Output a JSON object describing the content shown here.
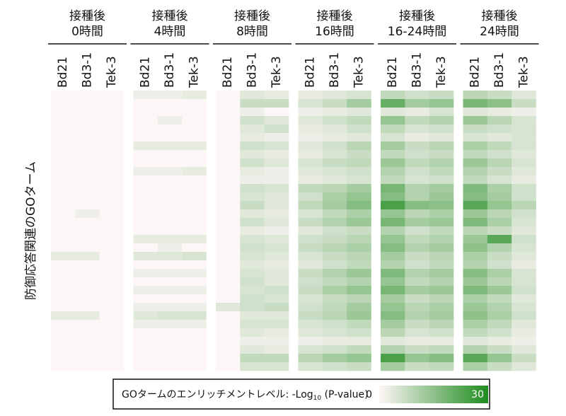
{
  "chart_data": {
    "type": "heatmap",
    "ylabel": "防御応答関連のGOターム",
    "colorbar_label": "GOタームのエンリッチメントレベル: -Log",
    "colorbar_label_sub": "10",
    "colorbar_label_end": " (P-value)",
    "zlim": [
      0,
      30
    ],
    "zticks": [
      0,
      30
    ],
    "colors": [
      "#fdf6f6",
      "#1e8c1e"
    ],
    "groups": [
      {
        "label": [
          "接種後",
          "0時間"
        ],
        "columns": [
          {
            "name": "Bd21",
            "values": [
              0,
              0,
              0,
              0,
              0,
              0,
              0,
              0,
              0,
              0,
              0,
              0,
              0,
              0,
              0,
              0,
              0,
              0,
              0,
              3,
              0,
              0,
              0,
              0,
              0,
              0,
              3,
              0,
              0,
              0,
              0,
              0,
              0
            ]
          },
          {
            "name": "Bd3-1",
            "values": [
              0,
              0,
              0,
              0,
              0,
              0,
              0,
              0,
              0,
              0,
              0,
              0,
              0,
              0,
              2,
              0,
              0,
              0,
              0,
              3,
              0,
              0,
              0,
              0,
              0,
              0,
              3,
              0,
              0,
              0,
              0,
              0,
              0
            ]
          },
          {
            "name": "Tek-3",
            "values": [
              0,
              0,
              0,
              0,
              0,
              0,
              0,
              0,
              0,
              0,
              0,
              0,
              0,
              0,
              0,
              0,
              0,
              0,
              0,
              0,
              0,
              0,
              0,
              0,
              0,
              0,
              0,
              0,
              0,
              0,
              0,
              0,
              0
            ]
          }
        ]
      },
      {
        "label": [
          "接種後",
          "4時間"
        ],
        "columns": [
          {
            "name": "Bd21",
            "values": [
              2,
              0,
              0,
              0,
              0,
              0,
              3,
              0,
              0,
              2,
              0,
              0,
              0,
              0,
              0,
              0,
              0,
              3,
              0,
              4,
              0,
              2,
              0,
              2,
              0,
              2,
              4,
              2,
              0,
              0,
              0,
              0,
              0
            ]
          },
          {
            "name": "Bd3-1",
            "values": [
              2,
              0,
              0,
              2,
              0,
              0,
              3,
              0,
              0,
              2,
              0,
              0,
              0,
              0,
              0,
              0,
              0,
              3,
              2,
              4,
              0,
              2,
              0,
              2,
              0,
              2,
              5,
              2,
              0,
              0,
              0,
              0,
              0
            ]
          },
          {
            "name": "Tek-3",
            "values": [
              3,
              0,
              0,
              0,
              0,
              0,
              3,
              0,
              0,
              3,
              0,
              0,
              0,
              0,
              0,
              0,
              0,
              3,
              0,
              5,
              0,
              2,
              0,
              2,
              0,
              2,
              5,
              2,
              0,
              0,
              0,
              0,
              0
            ]
          }
        ]
      },
      {
        "label": [
          "接種後",
          "8時間"
        ],
        "columns": [
          {
            "name": "Bd21",
            "values": [
              0,
              0,
              0,
              0,
              0,
              0,
              0,
              0,
              0,
              0,
              0,
              0,
              0,
              0,
              0,
              0,
              0,
              0,
              0,
              0,
              0,
              0,
              0,
              0,
              0,
              4,
              0,
              0,
              0,
              0,
              0,
              0,
              0
            ]
          },
          {
            "name": "Bd3-1",
            "values": [
              4,
              7,
              2,
              6,
              4,
              3,
              6,
              4,
              6,
              3,
              2,
              6,
              5,
              7,
              4,
              6,
              3,
              5,
              6,
              5,
              4,
              5,
              6,
              5,
              6,
              6,
              4,
              5,
              4,
              2,
              4,
              8,
              5
            ]
          },
          {
            "name": "Tek-3",
            "values": [
              3,
              7,
              0,
              4,
              6,
              2,
              5,
              3,
              4,
              2,
              2,
              5,
              4,
              4,
              3,
              4,
              2,
              4,
              5,
              4,
              3,
              4,
              4,
              6,
              5,
              7,
              4,
              5,
              3,
              2,
              3,
              8,
              5
            ]
          }
        ]
      },
      {
        "label": [
          "接種後",
          "16時間"
        ],
        "columns": [
          {
            "name": "Bd21",
            "values": [
              3,
              5,
              2,
              4,
              3,
              2,
              4,
              3,
              5,
              4,
              3,
              8,
              6,
              8,
              5,
              7,
              4,
              6,
              7,
              5,
              4,
              7,
              6,
              7,
              5,
              6,
              7,
              5,
              4,
              2,
              5,
              9,
              5
            ]
          },
          {
            "name": "Bd3-1",
            "values": [
              4,
              7,
              3,
              6,
              4,
              3,
              6,
              5,
              7,
              5,
              4,
              9,
              11,
              12,
              8,
              10,
              6,
              7,
              9,
              7,
              6,
              10,
              8,
              11,
              7,
              8,
              9,
              6,
              5,
              3,
              6,
              12,
              6
            ]
          },
          {
            "name": "Tek-3",
            "values": [
              5,
              12,
              4,
              8,
              6,
              4,
              9,
              7,
              8,
              6,
              5,
              12,
              14,
              16,
              11,
              13,
              7,
              9,
              11,
              9,
              8,
              13,
              10,
              14,
              9,
              12,
              13,
              8,
              6,
              3,
              8,
              14,
              7
            ]
          }
        ]
      },
      {
        "label": [
          "接種後",
          "16-24時間"
        ],
        "columns": [
          {
            "name": "Bd21",
            "values": [
              8,
              20,
              4,
              14,
              8,
              5,
              12,
              8,
              13,
              10,
              8,
              18,
              16,
              24,
              14,
              18,
              10,
              14,
              16,
              12,
              10,
              17,
              14,
              18,
              12,
              14,
              16,
              12,
              9,
              4,
              10,
              24,
              12
            ]
          },
          {
            "name": "Bd3-1",
            "values": [
              6,
              12,
              3,
              8,
              5,
              3,
              7,
              6,
              8,
              6,
              5,
              10,
              10,
              16,
              9,
              12,
              6,
              8,
              10,
              7,
              6,
              10,
              8,
              12,
              7,
              9,
              10,
              7,
              5,
              3,
              7,
              14,
              7
            ]
          },
          {
            "name": "Tek-3",
            "values": [
              7,
              14,
              5,
              10,
              6,
              4,
              9,
              7,
              10,
              8,
              6,
              12,
              13,
              15,
              11,
              13,
              8,
              10,
              12,
              9,
              8,
              12,
              10,
              13,
              9,
              11,
              12,
              9,
              6,
              3,
              8,
              16,
              8
            ]
          }
        ]
      },
      {
        "label": [
          "接種後",
          "24時間"
        ],
        "columns": [
          {
            "name": "Bd21",
            "values": [
              9,
              18,
              4,
              13,
              7,
              5,
              11,
              8,
              13,
              10,
              8,
              17,
              16,
              22,
              13,
              17,
              9,
              13,
              15,
              11,
              10,
              16,
              13,
              17,
              11,
              13,
              15,
              11,
              8,
              4,
              10,
              22,
              11
            ]
          },
          {
            "name": "Bd3-1",
            "values": [
              7,
              15,
              3,
              9,
              6,
              4,
              8,
              6,
              9,
              7,
              5,
              11,
              12,
              14,
              9,
              11,
              7,
              22,
              10,
              7,
              6,
              11,
              9,
              13,
              8,
              10,
              11,
              8,
              6,
              3,
              7,
              14,
              7
            ]
          },
          {
            "name": "Tek-3",
            "values": [
              4,
              7,
              2,
              5,
              5,
              5,
              5,
              4,
              5,
              4,
              3,
              6,
              6,
              9,
              6,
              5,
              4,
              6,
              5,
              4,
              3,
              5,
              5,
              6,
              4,
              5,
              6,
              4,
              3,
              2,
              4,
              7,
              4
            ]
          }
        ]
      }
    ]
  }
}
